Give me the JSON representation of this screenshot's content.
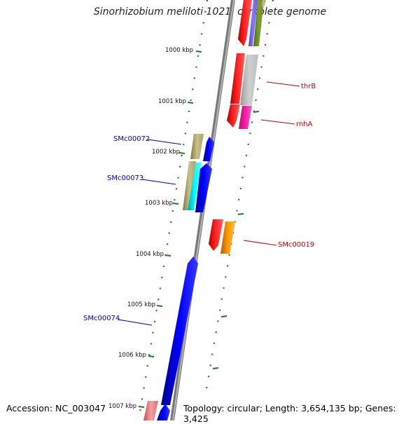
{
  "title": "Sinorhizobium meliloti 1021, complete genome",
  "footer": {
    "accession": "Accession: NC_003047",
    "topology": "Topology: circular; Length: 3,654,135 bp; Genes: 3,425"
  },
  "scale_labels": [
    "1000 kbp",
    "1001 kbp",
    "1002 kbp",
    "1003 kbp",
    "1004 kbp",
    "1005 kbp",
    "1006 kbp",
    "1007 kbp"
  ],
  "gene_labels": {
    "thrB": "thrB",
    "rnhA": "rnhA",
    "SMc00019": "SMc00019",
    "SMc00072": "SMc00072",
    "SMc00073": "SMc00073",
    "SMc00074": "SMc00074"
  },
  "colors": {
    "backbone": "#8a8a8a",
    "ticks": "#1f7a1f",
    "forward_label": "#c00000",
    "reverse_label": "#0000b0",
    "red": "#ff0000",
    "blue": "#0000ff",
    "gray": "#c8c8c8",
    "magenta": "#ff1aa3",
    "orange": "#ff9900",
    "olive": "#b5b07a",
    "cyan": "#00e5ff",
    "purple": "#7b68ee",
    "olive_green": "#6b8e23",
    "pink": "#f08080"
  }
}
